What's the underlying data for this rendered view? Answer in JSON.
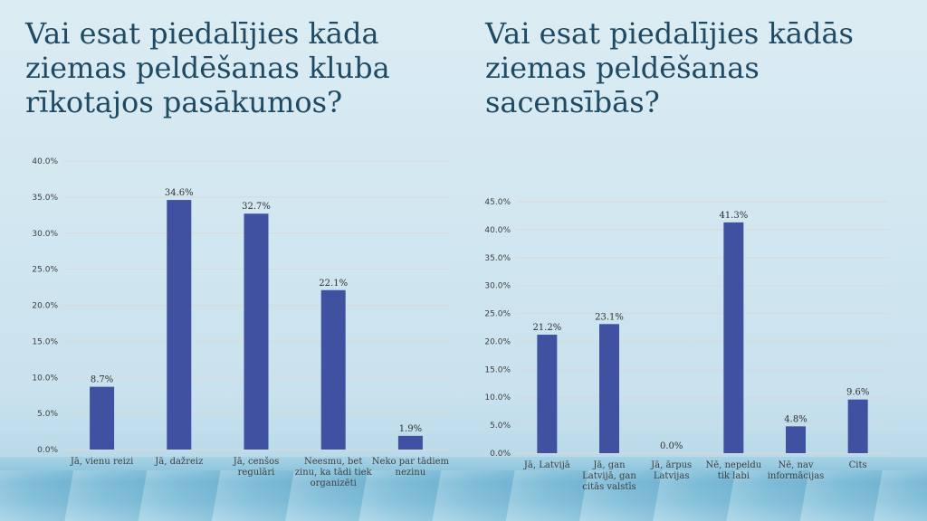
{
  "slide": {
    "title_left": "Vai esat piedalījies kāda ziemas peldēšanas kluba rīkotajos pasākumos?",
    "title_right": "Vai esat piedalījies kādās ziemas peldēšanas sacensībās?"
  },
  "colors": {
    "bar": "#3f51a0",
    "grid": "#d9d9d9",
    "title": "#1f4a63"
  },
  "chart_data": [
    {
      "type": "bar",
      "title": "Vai esat piedalījies kāda ziemas peldēšanas kluba rīkotajos pasākumos?",
      "categories": [
        [
          "Jā, vienu reizi"
        ],
        [
          "Jā, dažreiz"
        ],
        [
          "Jā, cenšos",
          "regulāri"
        ],
        [
          "Neesmu, bet",
          "zinu, ka tādi tiek",
          "organizēti"
        ],
        [
          "Neko par tādiem",
          "nezinu"
        ]
      ],
      "values": [
        8.7,
        34.6,
        32.7,
        22.1,
        1.9
      ],
      "data_labels": [
        "8.7%",
        "34.6%",
        "32.7%",
        "22.1%",
        "1.9%"
      ],
      "y_ticks": [
        "0.0%",
        "5.0%",
        "10.0%",
        "15.0%",
        "20.0%",
        "25.0%",
        "30.0%",
        "35.0%",
        "40.0%"
      ],
      "ylim": [
        0,
        40
      ],
      "grid": true
    },
    {
      "type": "bar",
      "title": "Vai esat piedalījies kādās ziemas peldēšanas sacensībās?",
      "categories": [
        [
          "Jā, Latvijā"
        ],
        [
          "Jā, gan",
          "Latvijā, gan",
          "citās valstīs"
        ],
        [
          "Jā, ārpus",
          "Latvijas"
        ],
        [
          "Nē, nepeldu",
          "tik labi"
        ],
        [
          "Nē, nav",
          "informācijas"
        ],
        [
          "Cits"
        ]
      ],
      "values": [
        21.2,
        23.1,
        0.0,
        41.3,
        4.8,
        9.6
      ],
      "data_labels": [
        "21.2%",
        "23.1%",
        "0.0%",
        "41.3%",
        "4.8%",
        "9.6%"
      ],
      "y_ticks": [
        "0.0%",
        "5.0%",
        "10.0%",
        "15.0%",
        "20.0%",
        "25.0%",
        "30.0%",
        "35.0%",
        "40.0%",
        "45.0%"
      ],
      "ylim": [
        0,
        45
      ],
      "grid": true
    }
  ]
}
